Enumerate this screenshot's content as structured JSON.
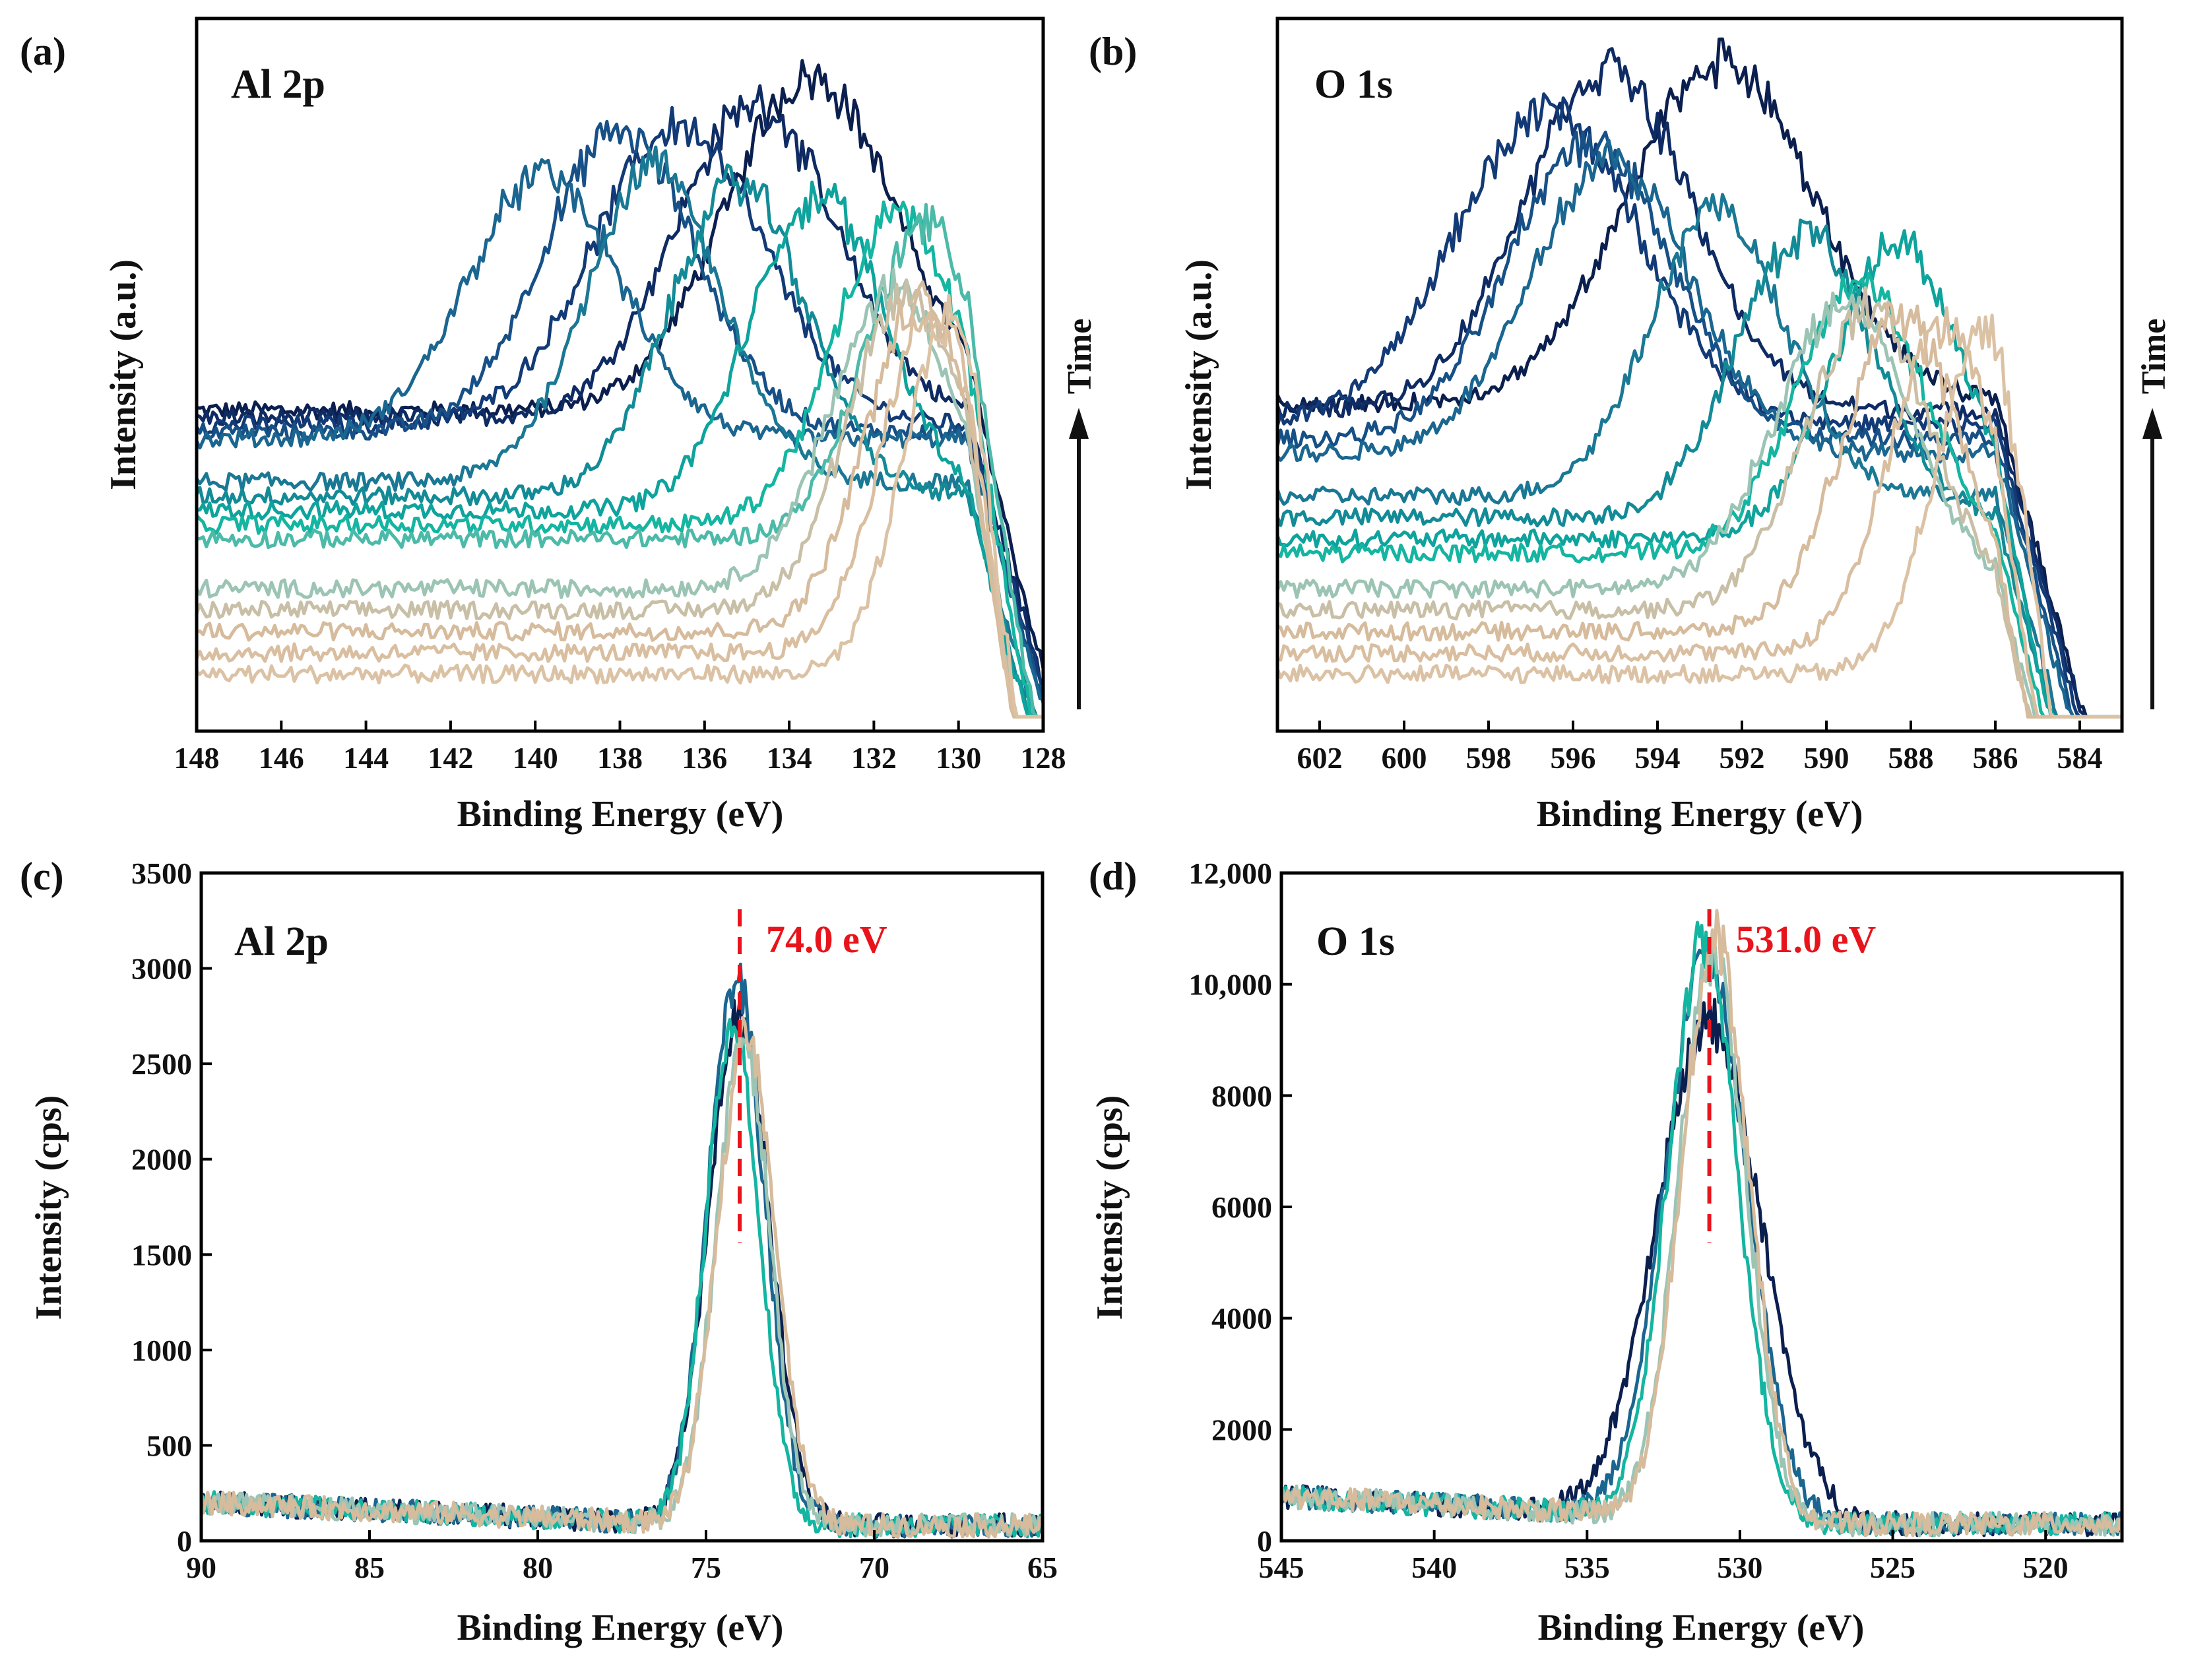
{
  "figure": {
    "colors": {
      "dark": "#0b1f4f",
      "mid": "#1a6a8a",
      "teal": "#14b5a1",
      "sand": "#d6bb9c",
      "annotation": "#e8141c",
      "axis": "#000000"
    }
  },
  "chart_data": [
    {
      "id": "a",
      "type": "line",
      "panel_label": "(a)",
      "title": "Al 2p",
      "xlabel": "Binding Energy (eV)",
      "ylabel": "Intensity (a.u.)",
      "xlim": [
        148,
        128
      ],
      "ylim": [
        0,
        1
      ],
      "x_ticks": [
        "148",
        "146",
        "144",
        "142",
        "140",
        "138",
        "136",
        "134",
        "132",
        "130",
        "128"
      ],
      "y_ticks": [],
      "grid": false,
      "side_label": "Time",
      "kind": "waterfall",
      "series": [
        {
          "name": "t1",
          "color": "#0b1f4f",
          "peak": 133.5,
          "width": 2.0,
          "baseline": 0.45,
          "amp": 0.47,
          "tail_start": 129.8
        },
        {
          "name": "t2",
          "color": "#0e2b63",
          "peak": 134.8,
          "width": 1.9,
          "baseline": 0.44,
          "amp": 0.44,
          "tail_start": 129.8
        },
        {
          "name": "t3",
          "color": "#123a76",
          "peak": 136.6,
          "width": 2.0,
          "baseline": 0.43,
          "amp": 0.42,
          "tail_start": 129.8
        },
        {
          "name": "t4",
          "color": "#165086",
          "peak": 138.0,
          "width": 1.8,
          "baseline": 0.42,
          "amp": 0.42,
          "tail_start": 129.8
        },
        {
          "name": "t5",
          "color": "#1a6690",
          "peak": 139.8,
          "width": 1.8,
          "baseline": 0.41,
          "amp": 0.37,
          "tail_start": 129.8
        },
        {
          "name": "t6",
          "color": "#1a7894",
          "peak": 137.2,
          "width": 1.6,
          "baseline": 0.35,
          "amp": 0.44,
          "tail_start": 129.8
        },
        {
          "name": "t7",
          "color": "#138b97",
          "peak": 135.2,
          "width": 1.6,
          "baseline": 0.33,
          "amp": 0.44,
          "tail_start": 129.8
        },
        {
          "name": "t8",
          "color": "#0ea39c",
          "peak": 133.3,
          "width": 1.6,
          "baseline": 0.31,
          "amp": 0.44,
          "tail_start": 129.8
        },
        {
          "name": "t9",
          "color": "#14b5a1",
          "peak": 131.4,
          "width": 1.5,
          "baseline": 0.29,
          "amp": 0.44,
          "tail_start": 129.8
        },
        {
          "name": "t10",
          "color": "#4cbaa8",
          "peak": 130.8,
          "width": 1.4,
          "baseline": 0.27,
          "amp": 0.44,
          "tail_start": 129.8
        },
        {
          "name": "t11",
          "color": "#9cc4b4",
          "peak": 131.5,
          "width": 1.5,
          "baseline": 0.2,
          "amp": 0.42,
          "tail_start": 129.8
        },
        {
          "name": "t12",
          "color": "#c8bfa6",
          "peak": 131.2,
          "width": 1.4,
          "baseline": 0.17,
          "amp": 0.44,
          "tail_start": 129.8
        },
        {
          "name": "t13",
          "color": "#d6bb9c",
          "peak": 130.9,
          "width": 1.3,
          "baseline": 0.14,
          "amp": 0.46,
          "tail_start": 129.8
        },
        {
          "name": "t14",
          "color": "#d9bea0",
          "peak": 130.6,
          "width": 1.2,
          "baseline": 0.11,
          "amp": 0.48,
          "tail_start": 129.8
        },
        {
          "name": "t15",
          "color": "#dcc2a5",
          "peak": 130.2,
          "width": 1.1,
          "baseline": 0.08,
          "amp": 0.5,
          "tail_start": 129.8
        }
      ]
    },
    {
      "id": "b",
      "type": "line",
      "panel_label": "(b)",
      "title": "O 1s",
      "xlabel": "Binding Energy (eV)",
      "ylabel": "Intensity (a.u.)",
      "xlim": [
        603,
        583
      ],
      "ylim": [
        0,
        1
      ],
      "x_ticks": [
        "602",
        "600",
        "598",
        "596",
        "594",
        "592",
        "590",
        "588",
        "586",
        "584"
      ],
      "y_ticks": [],
      "grid": false,
      "side_label": "Time",
      "kind": "waterfall",
      "series": [
        {
          "name": "t1",
          "color": "#0b1f4f",
          "peak": 592.5,
          "width": 2.2,
          "baseline": 0.46,
          "amp": 0.48,
          "tail_start": 586.0
        },
        {
          "name": "t2",
          "color": "#0e2b63",
          "peak": 595.2,
          "width": 2.0,
          "baseline": 0.45,
          "amp": 0.48,
          "tail_start": 586.0
        },
        {
          "name": "t3",
          "color": "#123a76",
          "peak": 596.6,
          "width": 2.2,
          "baseline": 0.43,
          "amp": 0.44,
          "tail_start": 586.0
        },
        {
          "name": "t4",
          "color": "#165086",
          "peak": 595.6,
          "width": 1.9,
          "baseline": 0.41,
          "amp": 0.42,
          "tail_start": 586.0
        },
        {
          "name": "t5",
          "color": "#1a6690",
          "peak": 595.1,
          "width": 1.9,
          "baseline": 0.39,
          "amp": 0.41,
          "tail_start": 586.0
        },
        {
          "name": "t6",
          "color": "#1a7894",
          "peak": 592.6,
          "width": 1.6,
          "baseline": 0.33,
          "amp": 0.4,
          "tail_start": 586.0
        },
        {
          "name": "t7",
          "color": "#138b97",
          "peak": 590.5,
          "width": 1.6,
          "baseline": 0.3,
          "amp": 0.4,
          "tail_start": 586.0
        },
        {
          "name": "t8",
          "color": "#0ea39c",
          "peak": 588.3,
          "width": 1.5,
          "baseline": 0.27,
          "amp": 0.42,
          "tail_start": 586.0
        },
        {
          "name": "t9",
          "color": "#14b5a1",
          "peak": 589.2,
          "width": 1.5,
          "baseline": 0.25,
          "amp": 0.38,
          "tail_start": 586.0
        },
        {
          "name": "t10",
          "color": "#9cc4b4",
          "peak": 589.6,
          "width": 1.6,
          "baseline": 0.2,
          "amp": 0.4,
          "tail_start": 586.0
        },
        {
          "name": "t11",
          "color": "#c8bfa6",
          "peak": 589.0,
          "width": 1.5,
          "baseline": 0.17,
          "amp": 0.42,
          "tail_start": 586.0
        },
        {
          "name": "t12",
          "color": "#d6bb9c",
          "peak": 588.2,
          "width": 1.4,
          "baseline": 0.14,
          "amp": 0.44,
          "tail_start": 586.0
        },
        {
          "name": "t13",
          "color": "#d9bea0",
          "peak": 587.2,
          "width": 1.3,
          "baseline": 0.11,
          "amp": 0.46,
          "tail_start": 586.0
        },
        {
          "name": "t14",
          "color": "#dcc2a5",
          "peak": 586.2,
          "width": 1.2,
          "baseline": 0.08,
          "amp": 0.48,
          "tail_start": 586.0
        }
      ]
    },
    {
      "id": "c",
      "type": "line",
      "panel_label": "(c)",
      "title": "Al 2p",
      "xlabel": "Binding Energy (eV)",
      "ylabel": "Intensity (cps)",
      "xlim": [
        90,
        65
      ],
      "ylim": [
        0,
        3500
      ],
      "x_ticks": [
        "90",
        "85",
        "80",
        "75",
        "70",
        "65"
      ],
      "y_ticks": [
        "0",
        "500",
        "1000",
        "1500",
        "2000",
        "2500",
        "3000",
        "3500"
      ],
      "grid": false,
      "kind": "overlay",
      "background": {
        "start": 200,
        "end": 80
      },
      "annotation": {
        "x": 74.0,
        "label": "74.0 eV"
      },
      "series": [
        {
          "name": "s1",
          "color": "#0b1f4f",
          "peak": 74.0,
          "width": 0.9,
          "amp": 2700
        },
        {
          "name": "s2",
          "color": "#1a6690",
          "peak": 74.1,
          "width": 0.85,
          "amp": 2850
        },
        {
          "name": "s3",
          "color": "#14b5a1",
          "peak": 74.2,
          "width": 0.8,
          "amp": 2600
        },
        {
          "name": "s4",
          "color": "#9cc4b4",
          "peak": 73.9,
          "width": 0.8,
          "amp": 2550
        },
        {
          "name": "s5",
          "color": "#d6bb9c",
          "peak": 73.8,
          "width": 0.85,
          "amp": 2600
        }
      ]
    },
    {
      "id": "d",
      "type": "line",
      "panel_label": "(d)",
      "title": "O 1s",
      "xlabel": "Binding Energy (eV)",
      "ylabel": "Intensity (cps)",
      "xlim": [
        545,
        517.5
      ],
      "ylim": [
        0,
        12000
      ],
      "x_ticks": [
        "545",
        "540",
        "535",
        "530",
        "525",
        "520"
      ],
      "y_ticks": [
        "0",
        "2000",
        "4000",
        "6000",
        "8000",
        "10,000",
        "12,000"
      ],
      "grid": false,
      "kind": "overlay",
      "background": {
        "start": 800,
        "end": 300
      },
      "annotation": {
        "x": 531.0,
        "label": "531.0 eV"
      },
      "series": [
        {
          "name": "s1",
          "color": "#0b1f4f",
          "peak": 531.0,
          "width": 1.7,
          "amp": 8900
        },
        {
          "name": "s2",
          "color": "#1a6690",
          "peak": 531.1,
          "width": 1.35,
          "amp": 10100
        },
        {
          "name": "s3",
          "color": "#14b5a1",
          "peak": 531.2,
          "width": 1.15,
          "amp": 10300
        },
        {
          "name": "s4",
          "color": "#9cc4b4",
          "peak": 530.9,
          "width": 1.1,
          "amp": 10200
        },
        {
          "name": "s5",
          "color": "#d6bb9c",
          "peak": 530.8,
          "width": 1.1,
          "amp": 10500
        }
      ]
    }
  ]
}
